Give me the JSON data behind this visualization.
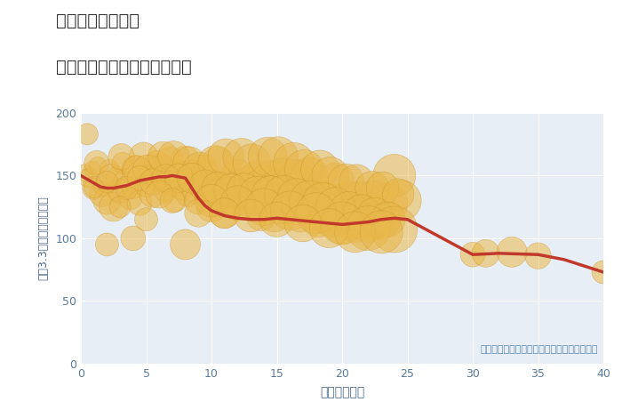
{
  "title_line1": "埼玉県ふじみ野駅",
  "title_line2": "築年数別中古マンション価格",
  "xlabel": "築年数（年）",
  "ylabel": "坪（3.3㎡）単価（万円）",
  "annotation": "円の大きさは、取引のあった物件面積を示す",
  "xlim": [
    0,
    40
  ],
  "ylim": [
    0,
    200
  ],
  "xticks": [
    0,
    5,
    10,
    15,
    20,
    25,
    30,
    35,
    40
  ],
  "yticks": [
    0,
    50,
    100,
    150,
    200
  ],
  "scatter_color": "#e8b84b",
  "scatter_alpha": 0.55,
  "line_color": "#c0392b",
  "line_width": 2.5,
  "trend_x": [
    0,
    0.5,
    1,
    1.5,
    2,
    2.5,
    3,
    3.5,
    4,
    4.5,
    5,
    5.5,
    6,
    6.5,
    7,
    7.5,
    8,
    8.5,
    9,
    9.5,
    10,
    11,
    12,
    13,
    14,
    15,
    16,
    17,
    18,
    19,
    20,
    21,
    22,
    23,
    24,
    25,
    30,
    32,
    35,
    37,
    40
  ],
  "trend_y": [
    150,
    147,
    144,
    141,
    140,
    140,
    141,
    142,
    144,
    146,
    147,
    148,
    149,
    149,
    150,
    149,
    148,
    140,
    132,
    126,
    122,
    118,
    116,
    115,
    115,
    116,
    115,
    114,
    113,
    112,
    111,
    112,
    113,
    115,
    116,
    115,
    87,
    88,
    87,
    83,
    73
  ],
  "scatter_x": [
    0.3,
    0.6,
    0.9,
    1.0,
    1.3,
    1.6,
    1.8,
    2.0,
    2.2,
    2.5,
    2.8,
    3.0,
    3.2,
    3.5,
    3.8,
    4.0,
    4.2,
    4.5,
    4.8,
    5.0,
    5.2,
    5.5,
    5.8,
    6.0,
    6.2,
    6.5,
    6.8,
    7.0,
    7.2,
    7.5,
    7.8,
    8.0,
    8.2,
    8.5,
    8.8,
    9.0,
    9.2,
    9.5,
    9.8,
    10.0,
    10.2,
    10.5,
    10.8,
    11.0,
    11.2,
    11.5,
    11.8,
    12.0,
    12.2,
    12.5,
    12.8,
    13.0,
    13.2,
    13.5,
    13.8,
    14.0,
    14.2,
    14.5,
    14.8,
    15.0,
    15.2,
    15.5,
    15.8,
    16.0,
    16.2,
    16.5,
    16.8,
    17.0,
    17.2,
    17.5,
    17.8,
    18.0,
    18.2,
    18.5,
    18.8,
    19.0,
    19.2,
    19.5,
    19.8,
    20.0,
    20.2,
    20.5,
    20.8,
    21.0,
    21.2,
    21.5,
    21.8,
    22.0,
    22.2,
    22.5,
    22.8,
    23.0,
    23.5,
    24.0,
    24.5,
    30.0,
    31.0,
    33.0,
    35.0,
    40.0,
    0.5,
    1.2,
    2.3,
    3.1,
    4.3,
    5.1,
    6.3,
    7.1,
    8.3,
    9.1,
    10.3,
    11.1,
    12.3,
    13.1,
    14.3,
    15.1,
    16.3,
    17.1,
    18.3,
    19.1,
    20.3,
    21.1,
    22.3,
    23.1,
    24.3,
    1.0,
    2.0,
    3.5,
    4.5,
    5.5,
    6.5,
    7.5,
    8.5,
    9.5,
    10.5,
    11.5,
    12.5,
    13.5,
    14.5,
    15.5,
    16.5,
    17.5,
    18.5,
    19.5,
    20.5,
    21.5,
    22.5,
    23.5,
    2.0,
    4.0,
    6.0,
    8.0,
    10.0,
    12.0,
    14.0,
    16.0,
    18.0,
    20.0,
    22.0,
    24.0,
    3.0,
    5.0,
    7.0,
    9.0,
    11.0,
    13.0,
    15.0,
    17.0,
    19.0,
    21.0,
    23.0
  ],
  "scatter_y": [
    152,
    148,
    155,
    140,
    158,
    135,
    142,
    130,
    155,
    125,
    148,
    138,
    160,
    145,
    132,
    140,
    155,
    128,
    165,
    142,
    150,
    135,
    160,
    148,
    155,
    138,
    162,
    145,
    130,
    150,
    140,
    162,
    135,
    150,
    138,
    130,
    155,
    148,
    135,
    125,
    140,
    160,
    128,
    120,
    138,
    142,
    128,
    150,
    135,
    140,
    128,
    145,
    130,
    148,
    118,
    145,
    130,
    148,
    118,
    140,
    125,
    150,
    128,
    145,
    130,
    148,
    118,
    140,
    125,
    150,
    128,
    120,
    115,
    130,
    118,
    130,
    115,
    145,
    118,
    110,
    115,
    130,
    118,
    112,
    115,
    130,
    118,
    112,
    115,
    130,
    118,
    115,
    128,
    150,
    130,
    87,
    88,
    89,
    86,
    73,
    183,
    160,
    150,
    165,
    155,
    155,
    165,
    165,
    160,
    155,
    160,
    165,
    165,
    160,
    165,
    165,
    160,
    155,
    155,
    150,
    145,
    145,
    140,
    140,
    135,
    140,
    145,
    140,
    148,
    145,
    148,
    148,
    148,
    142,
    140,
    138,
    138,
    135,
    135,
    135,
    132,
    130,
    128,
    125,
    122,
    120,
    118,
    115,
    95,
    100,
    135,
    95,
    130,
    128,
    125,
    122,
    120,
    112,
    108,
    107,
    125,
    115,
    130,
    120,
    120,
    118,
    115,
    112,
    108,
    105,
    105
  ],
  "scatter_size": [
    200,
    250,
    180,
    350,
    200,
    400,
    300,
    500,
    250,
    550,
    350,
    400,
    300,
    450,
    350,
    300,
    500,
    400,
    550,
    350,
    300,
    450,
    400,
    500,
    600,
    350,
    500,
    600,
    350,
    600,
    400,
    550,
    400,
    650,
    450,
    500,
    550,
    700,
    500,
    600,
    550,
    700,
    500,
    600,
    550,
    700,
    500,
    700,
    600,
    750,
    550,
    700,
    600,
    800,
    600,
    700,
    650,
    800,
    700,
    900,
    750,
    850,
    700,
    800,
    750,
    900,
    700,
    800,
    750,
    900,
    700,
    850,
    800,
    950,
    750,
    800,
    850,
    950,
    800,
    900,
    850,
    1000,
    900,
    950,
    900,
    1000,
    900,
    950,
    1000,
    1050,
    950,
    1000,
    1050,
    1200,
    1100,
    400,
    500,
    600,
    450,
    350,
    300,
    400,
    350,
    450,
    500,
    550,
    600,
    650,
    700,
    750,
    800,
    850,
    900,
    950,
    1000,
    1050,
    1100,
    1000,
    950,
    900,
    850,
    800,
    750,
    700,
    650,
    250,
    300,
    350,
    400,
    450,
    500,
    550,
    600,
    650,
    700,
    750,
    800,
    850,
    900,
    950,
    1000,
    1050,
    1100,
    1000,
    950,
    900,
    850,
    800,
    350,
    400,
    500,
    600,
    700,
    800,
    900,
    1000,
    1100,
    1200,
    1300,
    1400,
    300,
    350,
    400,
    500,
    600,
    700,
    800,
    900,
    1000,
    1100,
    1200
  ]
}
